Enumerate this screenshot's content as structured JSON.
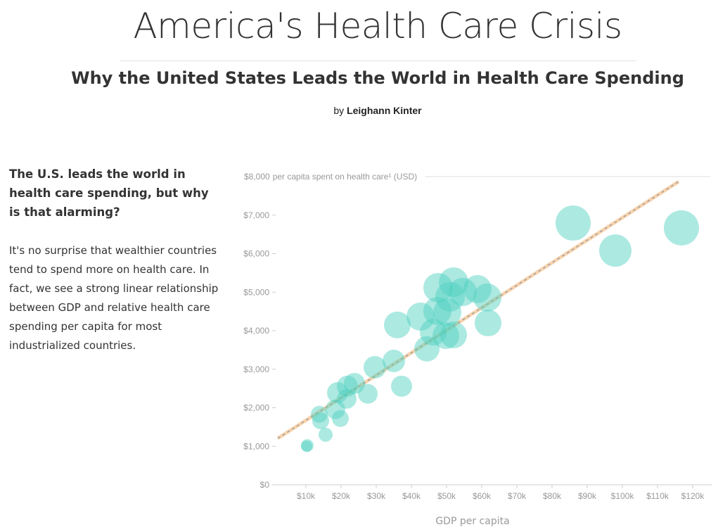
{
  "header": {
    "title": "America's Health Care Crisis",
    "subtitle": "Why the United States Leads the World in Health Care Spending",
    "byline_prefix": "by",
    "author": "Leighann Kinter"
  },
  "article": {
    "heading": "The U.S. leads the world in health care spending, but why is that alarming?",
    "paragraph": "It's no surprise that wealthier countries tend to spend more on health care. In fact, we see a strong linear relationship between GDP and relative health care spending per capita for most industrialized countries."
  },
  "chart_data": {
    "type": "scatter",
    "title": "",
    "xlabel": "GDP per capita",
    "ylabel": "per capita spent on health care¹ (USD)",
    "xlim": [
      0,
      125000
    ],
    "ylim": [
      0,
      8000
    ],
    "x_ticks": [
      10000,
      20000,
      30000,
      40000,
      50000,
      60000,
      70000,
      80000,
      90000,
      100000,
      110000,
      120000
    ],
    "x_tick_labels": [
      "$10k",
      "$20k",
      "$30k",
      "$40k",
      "$50k",
      "$60k",
      "$70k",
      "$80k",
      "$90k",
      "$100k",
      "$110k",
      "$120k"
    ],
    "y_ticks": [
      0,
      1000,
      2000,
      3000,
      4000,
      5000,
      6000,
      7000,
      8000
    ],
    "y_tick_labels": [
      "$0",
      "$1,000",
      "$2,000",
      "$3,000",
      "$4,000",
      "$5,000",
      "$6,000",
      "$7,000",
      "$8,000"
    ],
    "grid": "top gridline only",
    "marker_color": "#4fd1c0",
    "trend_color": "#f8c99a",
    "trend_dash_color": "#a0a0a0",
    "points": [
      {
        "x": 10400,
        "y": 1020,
        "size": 9
      },
      {
        "x": 10200,
        "y": 1000,
        "size": 8
      },
      {
        "x": 15600,
        "y": 1300,
        "size": 10
      },
      {
        "x": 14200,
        "y": 1660,
        "size": 12
      },
      {
        "x": 13800,
        "y": 1830,
        "size": 12
      },
      {
        "x": 19800,
        "y": 1720,
        "size": 12
      },
      {
        "x": 18400,
        "y": 1960,
        "size": 14
      },
      {
        "x": 21600,
        "y": 2230,
        "size": 14
      },
      {
        "x": 19000,
        "y": 2390,
        "size": 15
      },
      {
        "x": 21800,
        "y": 2560,
        "size": 15
      },
      {
        "x": 23800,
        "y": 2630,
        "size": 15
      },
      {
        "x": 27600,
        "y": 2360,
        "size": 14
      },
      {
        "x": 29600,
        "y": 3050,
        "size": 16
      },
      {
        "x": 35000,
        "y": 3215,
        "size": 16
      },
      {
        "x": 37200,
        "y": 2560,
        "size": 15
      },
      {
        "x": 36000,
        "y": 4150,
        "size": 19
      },
      {
        "x": 44400,
        "y": 3530,
        "size": 18
      },
      {
        "x": 42600,
        "y": 4365,
        "size": 20
      },
      {
        "x": 46200,
        "y": 3960,
        "size": 19
      },
      {
        "x": 49800,
        "y": 3870,
        "size": 19
      },
      {
        "x": 52000,
        "y": 3890,
        "size": 19
      },
      {
        "x": 47400,
        "y": 4510,
        "size": 20
      },
      {
        "x": 50200,
        "y": 4475,
        "size": 20
      },
      {
        "x": 47600,
        "y": 5115,
        "size": 21
      },
      {
        "x": 51000,
        "y": 4880,
        "size": 21
      },
      {
        "x": 52000,
        "y": 5260,
        "size": 21
      },
      {
        "x": 54600,
        "y": 5005,
        "size": 20
      },
      {
        "x": 58800,
        "y": 5080,
        "size": 20
      },
      {
        "x": 61600,
        "y": 4860,
        "size": 20
      },
      {
        "x": 61800,
        "y": 4200,
        "size": 19
      },
      {
        "x": 86000,
        "y": 6795,
        "size": 25
      },
      {
        "x": 98000,
        "y": 6080,
        "size": 23
      },
      {
        "x": 116800,
        "y": 6670,
        "size": 25
      }
    ],
    "trendline": {
      "x": [
        2000,
        116000
      ],
      "y": [
        1205,
        7870
      ]
    }
  }
}
